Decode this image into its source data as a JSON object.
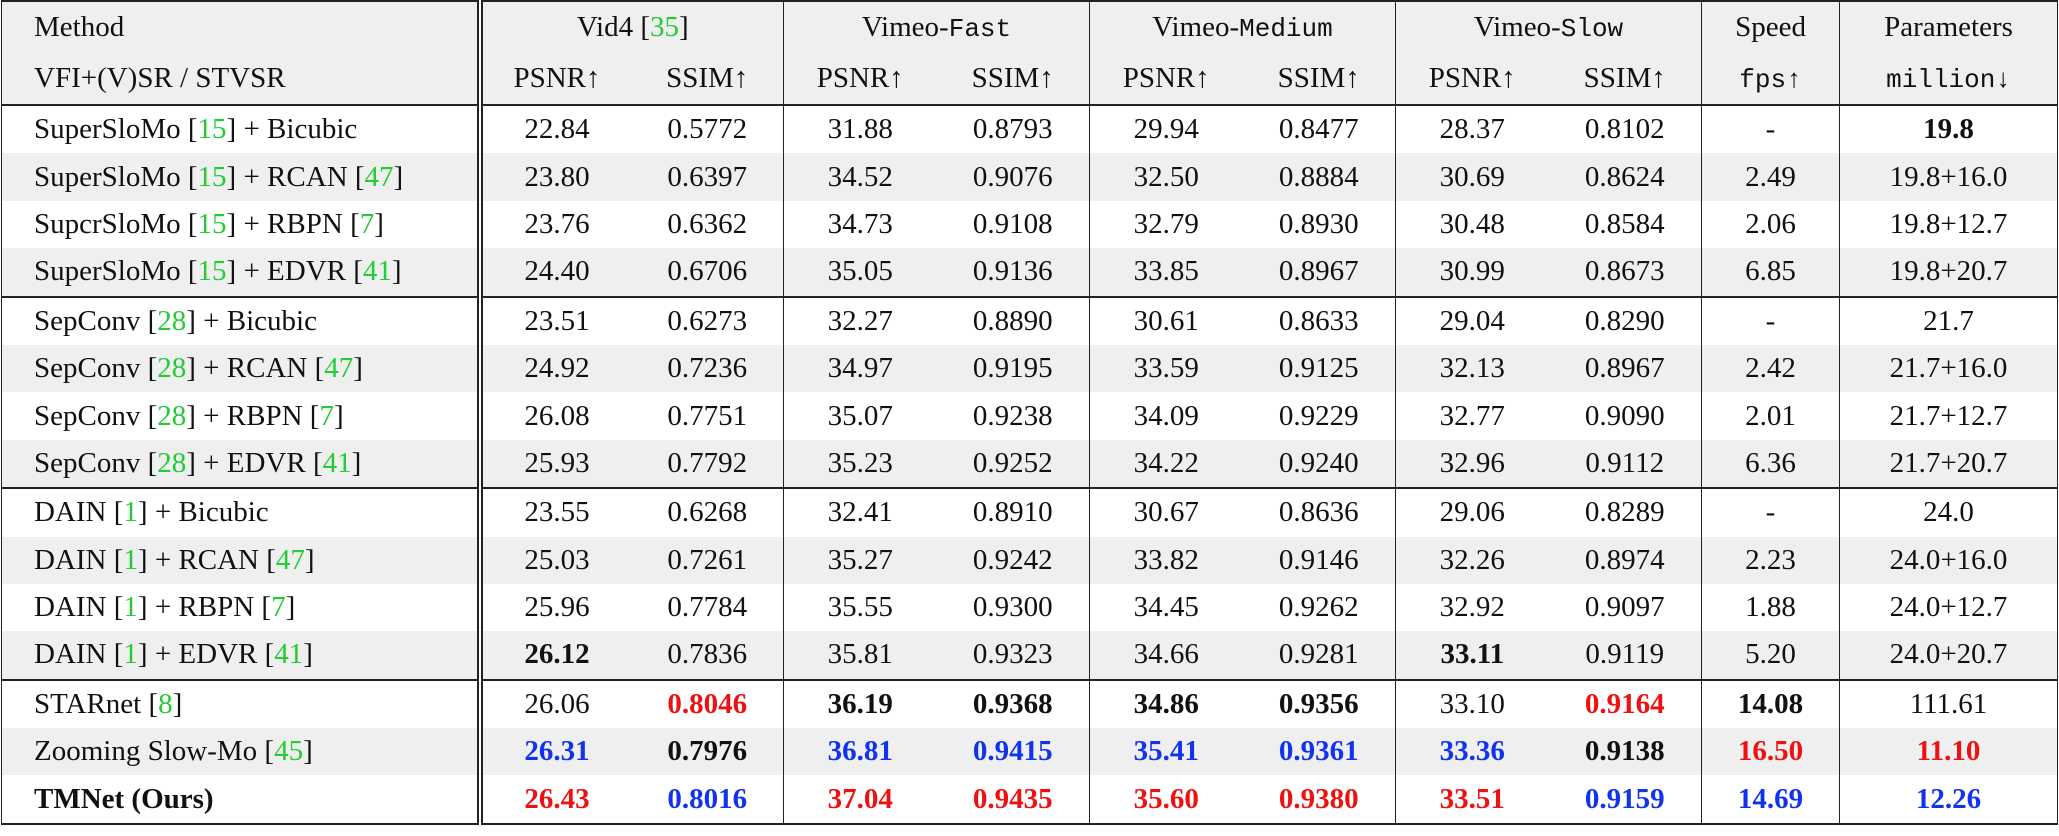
{
  "header": {
    "method": [
      {
        "text": "Method"
      }
    ],
    "method_sub": [
      {
        "text": "VFI+(V)SR / STVSR"
      }
    ],
    "groups": [
      [
        {
          "text": "Vid4 ["
        },
        {
          "text": "35",
          "style": "cite"
        },
        {
          "text": "]"
        }
      ],
      [
        {
          "text": "Vimeo-"
        },
        {
          "text": "Fast",
          "style": "mono"
        }
      ],
      [
        {
          "text": "Vimeo-"
        },
        {
          "text": "Medium",
          "style": "mono"
        }
      ],
      [
        {
          "text": "Vimeo-"
        },
        {
          "text": "Slow",
          "style": "mono"
        }
      ]
    ],
    "speed": [
      {
        "text": "Speed"
      }
    ],
    "params": [
      {
        "text": "Parameters"
      }
    ],
    "subheads": [
      [
        {
          "text": "PSNR↑"
        }
      ],
      [
        {
          "text": "SSIM↑"
        }
      ],
      [
        {
          "text": "PSNR↑"
        }
      ],
      [
        {
          "text": "SSIM↑"
        }
      ],
      [
        {
          "text": "PSNR↑"
        }
      ],
      [
        {
          "text": "SSIM↑"
        }
      ],
      [
        {
          "text": "PSNR↑"
        }
      ],
      [
        {
          "text": "SSIM↑"
        }
      ],
      [
        {
          "text": "fps↑",
          "style": "mono"
        }
      ],
      [
        {
          "text": "million↓",
          "style": "mono"
        }
      ]
    ]
  },
  "rows": [
    [
      {
        "method": [
          {
            "text": "SuperSloMo ["
          },
          {
            "text": "15",
            "style": "cite"
          },
          {
            "text": "] + Bicubic"
          }
        ],
        "cells": [
          "22.84",
          "0.5772",
          "31.88",
          "0.8793",
          "29.94",
          "0.8477",
          "28.37",
          "0.8102",
          "-",
          {
            "text": "19.8",
            "style": "bold"
          }
        ]
      },
      {
        "method": [
          {
            "text": "SuperSloMo ["
          },
          {
            "text": "15",
            "style": "cite"
          },
          {
            "text": "] + RCAN ["
          },
          {
            "text": "47",
            "style": "cite"
          },
          {
            "text": "]"
          }
        ],
        "cells": [
          "23.80",
          "0.6397",
          "34.52",
          "0.9076",
          "32.50",
          "0.8884",
          "30.69",
          "0.8624",
          "2.49",
          "19.8+16.0"
        ]
      },
      {
        "method": [
          {
            "text": "SupcrSloMo ["
          },
          {
            "text": "15",
            "style": "cite"
          },
          {
            "text": "] + RBPN ["
          },
          {
            "text": "7",
            "style": "cite"
          },
          {
            "text": "]"
          }
        ],
        "cells": [
          "23.76",
          "0.6362",
          "34.73",
          "0.9108",
          "32.79",
          "0.8930",
          "30.48",
          "0.8584",
          "2.06",
          "19.8+12.7"
        ]
      },
      {
        "method": [
          {
            "text": "SuperSloMo ["
          },
          {
            "text": "15",
            "style": "cite"
          },
          {
            "text": "] + EDVR ["
          },
          {
            "text": "41",
            "style": "cite"
          },
          {
            "text": "]"
          }
        ],
        "cells": [
          "24.40",
          "0.6706",
          "35.05",
          "0.9136",
          "33.85",
          "0.8967",
          "30.99",
          "0.8673",
          "6.85",
          "19.8+20.7"
        ]
      }
    ],
    [
      {
        "method": [
          {
            "text": "SepConv ["
          },
          {
            "text": "28",
            "style": "cite"
          },
          {
            "text": "] + Bicubic"
          }
        ],
        "cells": [
          "23.51",
          "0.6273",
          "32.27",
          "0.8890",
          "30.61",
          "0.8633",
          "29.04",
          "0.8290",
          "-",
          "21.7"
        ]
      },
      {
        "method": [
          {
            "text": "SepConv ["
          },
          {
            "text": "28",
            "style": "cite"
          },
          {
            "text": "] + RCAN ["
          },
          {
            "text": "47",
            "style": "cite"
          },
          {
            "text": "]"
          }
        ],
        "cells": [
          "24.92",
          "0.7236",
          "34.97",
          "0.9195",
          "33.59",
          "0.9125",
          "32.13",
          "0.8967",
          "2.42",
          "21.7+16.0"
        ]
      },
      {
        "method": [
          {
            "text": "SepConv ["
          },
          {
            "text": "28",
            "style": "cite"
          },
          {
            "text": "] + RBPN ["
          },
          {
            "text": "7",
            "style": "cite"
          },
          {
            "text": "]"
          }
        ],
        "cells": [
          "26.08",
          "0.7751",
          "35.07",
          "0.9238",
          "34.09",
          "0.9229",
          "32.77",
          "0.9090",
          "2.01",
          "21.7+12.7"
        ]
      },
      {
        "method": [
          {
            "text": "SepConv ["
          },
          {
            "text": "28",
            "style": "cite"
          },
          {
            "text": "] + EDVR ["
          },
          {
            "text": "41",
            "style": "cite"
          },
          {
            "text": "]"
          }
        ],
        "cells": [
          "25.93",
          "0.7792",
          "35.23",
          "0.9252",
          "34.22",
          "0.9240",
          "32.96",
          "0.9112",
          "6.36",
          "21.7+20.7"
        ]
      }
    ],
    [
      {
        "method": [
          {
            "text": "DAIN ["
          },
          {
            "text": "1",
            "style": "cite"
          },
          {
            "text": "] + Bicubic"
          }
        ],
        "cells": [
          "23.55",
          "0.6268",
          "32.41",
          "0.8910",
          "30.67",
          "0.8636",
          "29.06",
          "0.8289",
          "-",
          "24.0"
        ]
      },
      {
        "method": [
          {
            "text": "DAIN ["
          },
          {
            "text": "1",
            "style": "cite"
          },
          {
            "text": "] + RCAN ["
          },
          {
            "text": "47",
            "style": "cite"
          },
          {
            "text": "]"
          }
        ],
        "cells": [
          "25.03",
          "0.7261",
          "35.27",
          "0.9242",
          "33.82",
          "0.9146",
          "32.26",
          "0.8974",
          "2.23",
          "24.0+16.0"
        ]
      },
      {
        "method": [
          {
            "text": "DAIN ["
          },
          {
            "text": "1",
            "style": "cite"
          },
          {
            "text": "] + RBPN ["
          },
          {
            "text": "7",
            "style": "cite"
          },
          {
            "text": "]"
          }
        ],
        "cells": [
          "25.96",
          "0.7784",
          "35.55",
          "0.9300",
          "34.45",
          "0.9262",
          "32.92",
          "0.9097",
          "1.88",
          "24.0+12.7"
        ]
      },
      {
        "method": [
          {
            "text": "DAIN ["
          },
          {
            "text": "1",
            "style": "cite"
          },
          {
            "text": "] + EDVR ["
          },
          {
            "text": "41",
            "style": "cite"
          },
          {
            "text": "]"
          }
        ],
        "cells": [
          {
            "text": "26.12",
            "style": "bold"
          },
          "0.7836",
          "35.81",
          "0.9323",
          "34.66",
          "0.9281",
          {
            "text": "33.11",
            "style": "bold"
          },
          "0.9119",
          "5.20",
          "24.0+20.7"
        ]
      }
    ],
    [
      {
        "method": [
          {
            "text": "STARnet ["
          },
          {
            "text": "8",
            "style": "cite"
          },
          {
            "text": "]"
          }
        ],
        "cells": [
          "26.06",
          {
            "text": "0.8046",
            "style": "red"
          },
          {
            "text": "36.19",
            "style": "bold"
          },
          {
            "text": "0.9368",
            "style": "bold"
          },
          {
            "text": "34.86",
            "style": "bold"
          },
          {
            "text": "0.9356",
            "style": "bold"
          },
          "33.10",
          {
            "text": "0.9164",
            "style": "red"
          },
          {
            "text": "14.08",
            "style": "bold"
          },
          "111.61"
        ]
      },
      {
        "method": [
          {
            "text": "Zooming Slow-Mo ["
          },
          {
            "text": "45",
            "style": "cite"
          },
          {
            "text": "]"
          }
        ],
        "cells": [
          {
            "text": "26.31",
            "style": "blue"
          },
          {
            "text": "0.7976",
            "style": "bold"
          },
          {
            "text": "36.81",
            "style": "blue"
          },
          {
            "text": "0.9415",
            "style": "blue"
          },
          {
            "text": "35.41",
            "style": "blue"
          },
          {
            "text": "0.9361",
            "style": "blue"
          },
          {
            "text": "33.36",
            "style": "blue"
          },
          {
            "text": "0.9138",
            "style": "bold"
          },
          {
            "text": "16.50",
            "style": "red"
          },
          {
            "text": "11.10",
            "style": "red"
          }
        ]
      },
      {
        "method": [
          {
            "text": "TMNet (Ours)",
            "style": "bold"
          }
        ],
        "cells": [
          {
            "text": "26.43",
            "style": "red"
          },
          {
            "text": "0.8016",
            "style": "blue"
          },
          {
            "text": "37.04",
            "style": "red"
          },
          {
            "text": "0.9435",
            "style": "red"
          },
          {
            "text": "35.60",
            "style": "red"
          },
          {
            "text": "0.9380",
            "style": "red"
          },
          {
            "text": "33.51",
            "style": "red"
          },
          {
            "text": "0.9159",
            "style": "blue"
          },
          {
            "text": "14.69",
            "style": "blue"
          },
          {
            "text": "12.26",
            "style": "blue"
          }
        ]
      }
    ]
  ]
}
